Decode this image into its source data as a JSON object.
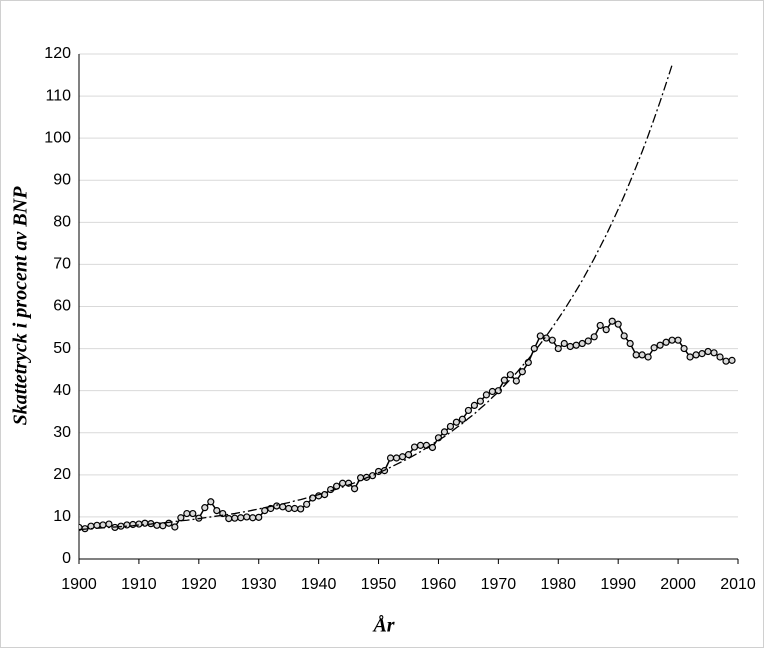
{
  "chart_data": {
    "type": "line",
    "xlabel": "År",
    "ylabel": "Skattetryck i procent av BNP",
    "x": [
      1900,
      1901,
      1902,
      1903,
      1904,
      1905,
      1906,
      1907,
      1908,
      1909,
      1910,
      1911,
      1912,
      1913,
      1914,
      1915,
      1916,
      1917,
      1918,
      1919,
      1920,
      1921,
      1922,
      1923,
      1924,
      1925,
      1926,
      1927,
      1928,
      1929,
      1930,
      1931,
      1932,
      1933,
      1934,
      1935,
      1936,
      1937,
      1938,
      1939,
      1940,
      1941,
      1942,
      1943,
      1944,
      1945,
      1946,
      1947,
      1948,
      1949,
      1950,
      1951,
      1952,
      1953,
      1954,
      1955,
      1956,
      1957,
      1958,
      1959,
      1960,
      1961,
      1962,
      1963,
      1964,
      1965,
      1966,
      1967,
      1968,
      1969,
      1970,
      1971,
      1972,
      1973,
      1974,
      1975,
      1976,
      1977,
      1978,
      1979,
      1980,
      1981,
      1982,
      1983,
      1984,
      1985,
      1986,
      1987,
      1988,
      1989,
      1990,
      1991,
      1992,
      1993,
      1994,
      1995,
      1996,
      1997,
      1998,
      1999,
      2000,
      2001,
      2002,
      2003,
      2004,
      2005,
      2006,
      2007,
      2008,
      2009
    ],
    "series": [
      {
        "color": "#000000",
        "markers": true,
        "dash": "solid",
        "values": [
          7.5,
          7.2,
          7.8,
          8.0,
          8.1,
          8.3,
          7.5,
          7.8,
          8.1,
          8.2,
          8.3,
          8.5,
          8.4,
          8.0,
          7.9,
          8.5,
          7.6,
          9.8,
          10.8,
          10.8,
          9.7,
          12.2,
          13.6,
          11.5,
          10.8,
          9.6,
          9.7,
          9.8,
          10.0,
          9.8,
          9.9,
          11.5,
          12.0,
          12.6,
          12.4,
          12.0,
          12.0,
          11.9,
          13.0,
          14.5,
          15.0,
          15.3,
          16.5,
          17.3,
          18.0,
          18.0,
          16.7,
          19.3,
          19.4,
          19.8,
          20.8,
          21.0,
          24.0,
          24.0,
          24.3,
          24.8,
          26.6,
          27.0,
          27.0,
          26.5,
          28.8,
          30.2,
          31.5,
          32.5,
          33.2,
          35.3,
          36.5,
          37.5,
          39.0,
          39.8,
          40.0,
          42.5,
          43.8,
          42.3,
          44.5,
          46.7,
          50.0,
          53.0,
          52.5,
          52.0,
          50.0,
          51.2,
          50.5,
          50.8,
          51.2,
          51.8,
          52.8,
          55.5,
          54.5,
          56.5,
          55.8,
          53.0,
          51.2,
          48.5,
          48.5,
          48.0,
          50.2,
          50.8,
          51.5,
          52.0,
          52.0,
          50.0,
          48.0,
          48.5,
          48.8,
          49.3,
          49.0,
          48.0,
          47.0,
          47.2
        ]
      },
      {
        "color": "#000000",
        "markers": false,
        "dash": "dashdot",
        "values": [
          7.0,
          7.1,
          7.2,
          7.3,
          7.4,
          7.5,
          7.6,
          7.7,
          7.8,
          7.9,
          8.1,
          8.2,
          8.3,
          8.5,
          8.6,
          8.7,
          8.9,
          9.1,
          9.2,
          9.4,
          9.6,
          9.8,
          10.0,
          10.2,
          10.4,
          10.6,
          10.8,
          11.1,
          11.3,
          11.6,
          11.9,
          12.2,
          12.5,
          12.8,
          13.1,
          13.4,
          13.8,
          14.1,
          14.5,
          14.9,
          15.3,
          15.7,
          16.2,
          16.6,
          17.1,
          17.6,
          18.1,
          18.7,
          19.3,
          19.8,
          20.5,
          21.1,
          21.8,
          22.5,
          23.2,
          23.9,
          24.7,
          25.5,
          26.4,
          27.3,
          28.2,
          29.1,
          30.1,
          31.2,
          32.2,
          33.4,
          34.5,
          35.8,
          37.0,
          38.4,
          39.7,
          41.2,
          42.7,
          44.2,
          45.9,
          47.5,
          49.3,
          51.1,
          53.0,
          55.0,
          57.1,
          59.2,
          61.5,
          63.8,
          66.2,
          68.8,
          71.4,
          74.2,
          77.0,
          80.0,
          83.1,
          86.3,
          89.7,
          93.2,
          96.8,
          100.6,
          104.6,
          108.7,
          113.0,
          117.4,
          null,
          null,
          null,
          null,
          null,
          null,
          null,
          null,
          null,
          null
        ]
      }
    ],
    "xlim": [
      1900,
      2010
    ],
    "xticks": [
      1900,
      1910,
      1920,
      1930,
      1940,
      1950,
      1960,
      1970,
      1980,
      1990,
      2000,
      2010
    ],
    "ylim": [
      0,
      120
    ],
    "yticks": [
      0,
      10,
      20,
      30,
      40,
      50,
      60,
      70,
      80,
      90,
      100,
      110,
      120
    ],
    "grid": true
  }
}
